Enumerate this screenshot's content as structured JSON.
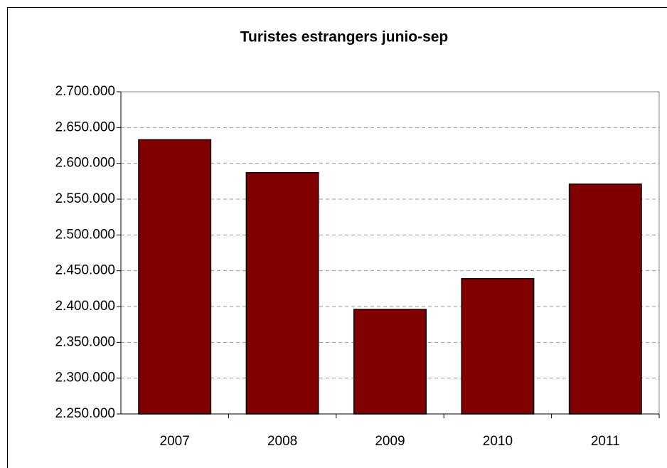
{
  "chart_data": {
    "type": "bar",
    "title": "Turistes estrangers junio-sep",
    "categories": [
      "2007",
      "2008",
      "2009",
      "2010",
      "2011"
    ],
    "values": [
      2633000,
      2587000,
      2396000,
      2439000,
      2571000
    ],
    "color": "#800000",
    "ylim": [
      2250000,
      2700000
    ],
    "yticks": [
      {
        "value": 2250000,
        "label": "2.250.000"
      },
      {
        "value": 2300000,
        "label": "2.300.000"
      },
      {
        "value": 2350000,
        "label": "2.350.000"
      },
      {
        "value": 2400000,
        "label": "2.400.000"
      },
      {
        "value": 2450000,
        "label": "2.450.000"
      },
      {
        "value": 2500000,
        "label": "2.500.000"
      },
      {
        "value": 2550000,
        "label": "2.550.000"
      },
      {
        "value": 2600000,
        "label": "2.600.000"
      },
      {
        "value": 2650000,
        "label": "2.650.000"
      },
      {
        "value": 2700000,
        "label": "2.700.000"
      }
    ],
    "grid": true
  }
}
